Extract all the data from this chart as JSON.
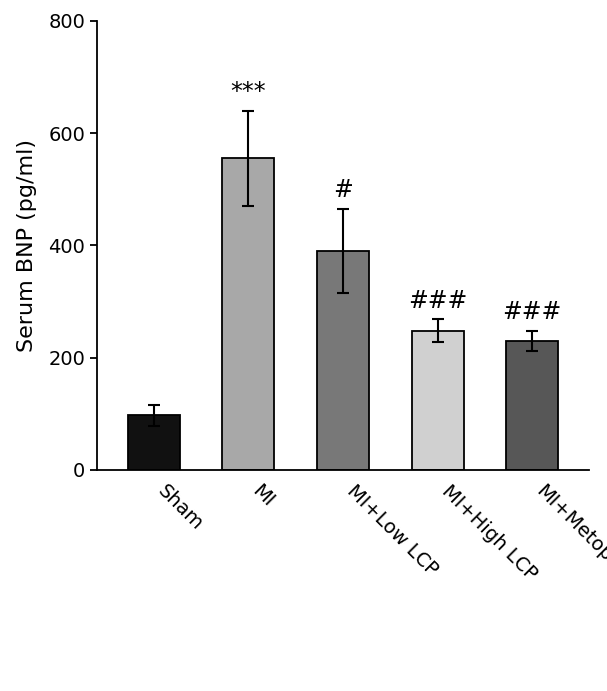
{
  "categories": [
    "Sham",
    "MI",
    "MI+Low LCP",
    "MI+High LCP",
    "MI+Metoprolol"
  ],
  "values": [
    97,
    555,
    390,
    248,
    230
  ],
  "errors": [
    18,
    85,
    75,
    20,
    18
  ],
  "bar_colors": [
    "#111111",
    "#a8a8a8",
    "#787878",
    "#d0d0d0",
    "#575757"
  ],
  "bar_edgecolor": "#000000",
  "ylabel": "Serum BNP (pg/ml)",
  "ylim": [
    0,
    800
  ],
  "yticks": [
    0,
    200,
    400,
    600,
    800
  ],
  "significance_labels": [
    "",
    "***",
    "#",
    "###",
    "###"
  ],
  "sig_fontsize": 17,
  "bar_width": 0.55,
  "figsize": [
    6.07,
    6.91
  ],
  "dpi": 100,
  "background_color": "#ffffff",
  "ylabel_fontsize": 16,
  "tick_fontsize": 14,
  "xtick_fontsize": 14
}
